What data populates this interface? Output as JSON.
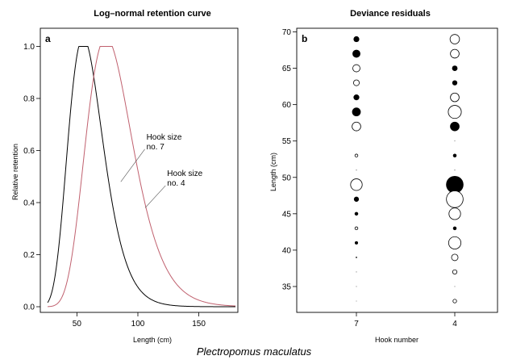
{
  "figure_caption": "Plectropomus maculatus",
  "colors": {
    "hook7_curve": "#000000",
    "hook4_curve": "#c0606e",
    "filled_point": "#000000",
    "open_point": "#ffffff"
  },
  "chart_data": [
    {
      "type": "line",
      "panel_label": "a",
      "title": "Log–normal retention curve",
      "xlabel": "Length (cm)",
      "ylabel": "Relative retention",
      "xlim": [
        20,
        182
      ],
      "ylim": [
        0,
        1.02
      ],
      "xticks": [
        50,
        100,
        150
      ],
      "yticks": [
        0.0,
        0.2,
        0.4,
        0.6,
        0.8,
        1.0
      ],
      "xtick_labels": [
        "50",
        "100",
        "150"
      ],
      "ytick_labels": [
        "0.0",
        "0.2",
        "0.4",
        "0.6",
        "0.8",
        "1.0"
      ],
      "series": [
        {
          "name": "Hook size no. 7",
          "label_lines": [
            "Hook size",
            "no. 7"
          ],
          "mode": 59,
          "log_sd": 0.26,
          "x_range": [
            26,
            180
          ],
          "color": "#000000"
        },
        {
          "name": "Hook size no. 4",
          "label_lines": [
            "Hook size",
            "no. 4"
          ],
          "mode": 79,
          "log_sd": 0.26,
          "x_range": [
            26,
            180
          ],
          "color": "#c0606e"
        }
      ],
      "annotations": [
        {
          "series": 0,
          "text_lines": [
            "Hook size",
            "no. 7"
          ],
          "text_at": [
            107,
            0.63
          ],
          "points_to": [
            86,
            0.48
          ]
        },
        {
          "series": 1,
          "text_lines": [
            "Hook size",
            "no. 4"
          ],
          "text_at": [
            124,
            0.49
          ],
          "points_to": [
            106,
            0.38
          ]
        }
      ]
    },
    {
      "type": "scatter",
      "panel_label": "b",
      "title": "Deviance residuals",
      "xlabel": "Hook number",
      "ylabel": "Length (cm)",
      "categories": [
        "7",
        "4"
      ],
      "ylim": [
        32,
        70.5
      ],
      "yticks": [
        35,
        40,
        45,
        50,
        55,
        60,
        65,
        70
      ],
      "ytick_labels": [
        "35",
        "40",
        "45",
        "50",
        "55",
        "60",
        "65",
        "70"
      ],
      "points": [
        {
          "hook": "7",
          "length": 69,
          "residual": 0.8
        },
        {
          "hook": "7",
          "length": 67,
          "residual": 1.1
        },
        {
          "hook": "7",
          "length": 65,
          "residual": -1.0
        },
        {
          "hook": "7",
          "length": 63,
          "residual": -0.8
        },
        {
          "hook": "7",
          "length": 61,
          "residual": 0.8
        },
        {
          "hook": "7",
          "length": 59,
          "residual": 1.2
        },
        {
          "hook": "7",
          "length": 57,
          "residual": -1.2
        },
        {
          "hook": "7",
          "length": 53,
          "residual": -0.4
        },
        {
          "hook": "7",
          "length": 51,
          "residual": 0.1
        },
        {
          "hook": "7",
          "length": 49,
          "residual": -1.6
        },
        {
          "hook": "7",
          "length": 47,
          "residual": 0.7
        },
        {
          "hook": "7",
          "length": 45,
          "residual": 0.5
        },
        {
          "hook": "7",
          "length": 43,
          "residual": -0.4
        },
        {
          "hook": "7",
          "length": 41,
          "residual": 0.45
        },
        {
          "hook": "7",
          "length": 39,
          "residual": 0.2
        },
        {
          "hook": "7",
          "length": 37,
          "residual": 0.1
        },
        {
          "hook": "7",
          "length": 35,
          "residual": 0.05
        },
        {
          "hook": "7",
          "length": 33,
          "residual": 0.05
        },
        {
          "hook": "4",
          "length": 69,
          "residual": -1.3
        },
        {
          "hook": "4",
          "length": 67,
          "residual": -1.2
        },
        {
          "hook": "4",
          "length": 65,
          "residual": 0.75
        },
        {
          "hook": "4",
          "length": 63,
          "residual": 0.7
        },
        {
          "hook": "4",
          "length": 61,
          "residual": -1.2
        },
        {
          "hook": "4",
          "length": 59,
          "residual": -1.8
        },
        {
          "hook": "4",
          "length": 57,
          "residual": 1.3
        },
        {
          "hook": "4",
          "length": 55,
          "residual": 0.05
        },
        {
          "hook": "4",
          "length": 53,
          "residual": 0.5
        },
        {
          "hook": "4",
          "length": 51,
          "residual": 0.1
        },
        {
          "hook": "4",
          "length": 49,
          "residual": 2.4
        },
        {
          "hook": "4",
          "length": 47,
          "residual": -2.3
        },
        {
          "hook": "4",
          "length": 45,
          "residual": -1.6
        },
        {
          "hook": "4",
          "length": 43,
          "residual": 0.5
        },
        {
          "hook": "4",
          "length": 41,
          "residual": -1.7
        },
        {
          "hook": "4",
          "length": 39,
          "residual": -0.9
        },
        {
          "hook": "4",
          "length": 37,
          "residual": -0.6
        },
        {
          "hook": "4",
          "length": 35,
          "residual": 0.05
        },
        {
          "hook": "4",
          "length": 33,
          "residual": -0.5
        }
      ]
    }
  ]
}
